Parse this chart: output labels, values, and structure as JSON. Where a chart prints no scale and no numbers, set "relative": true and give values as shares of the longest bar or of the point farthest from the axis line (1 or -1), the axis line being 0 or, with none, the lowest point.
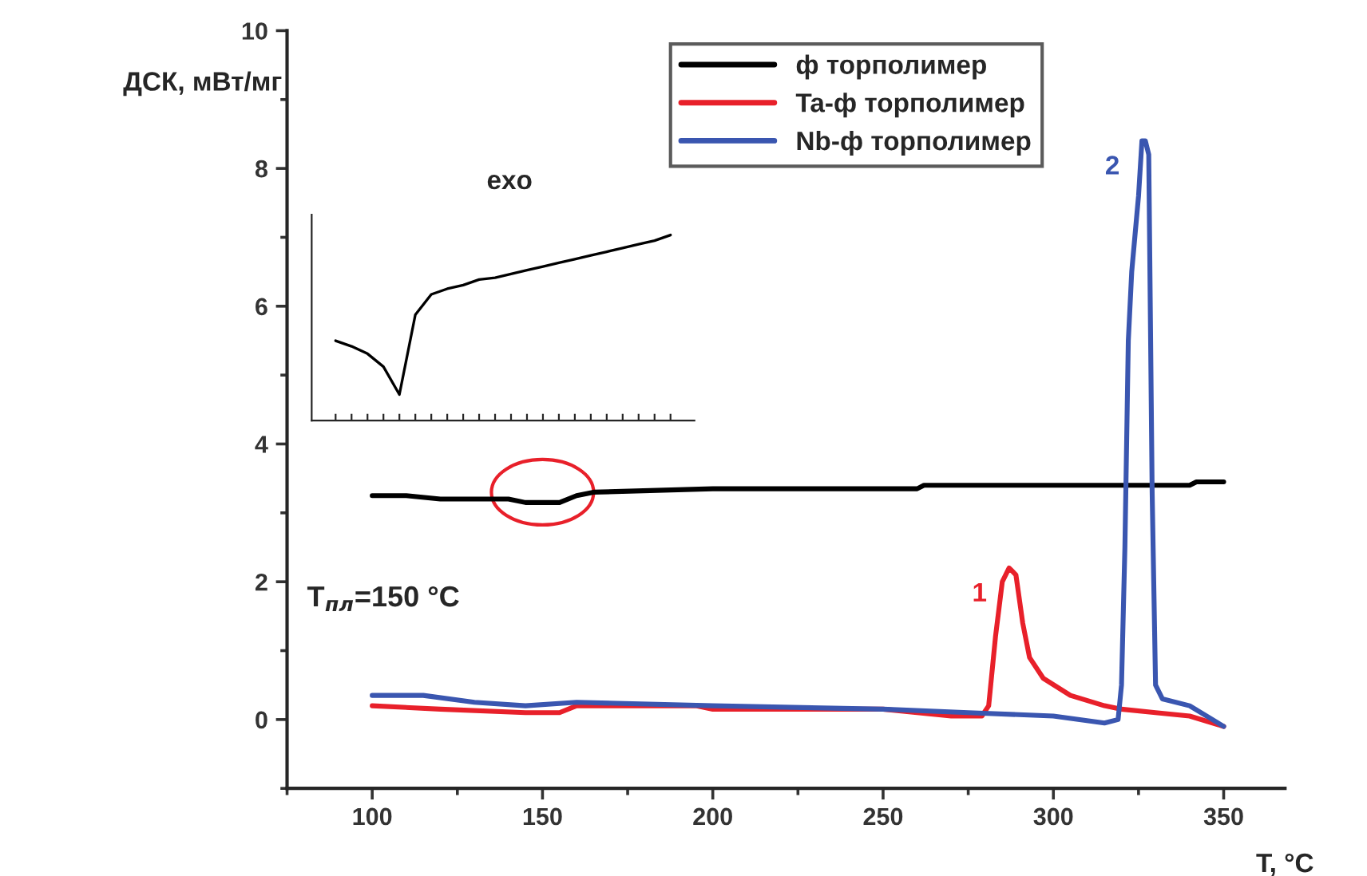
{
  "chart_data": [
    {
      "type": "line",
      "xlabel": "T, °C",
      "ylabel": "ДСК, мВт/мг",
      "xlim": [
        75,
        368
      ],
      "ylim": [
        -1,
        10
      ],
      "xticks": [
        100,
        150,
        200,
        250,
        300,
        350
      ],
      "yticks": [
        0,
        2,
        4,
        6,
        8,
        10
      ],
      "grid": false,
      "legend": "top right",
      "series": [
        {
          "name": "ф торполимер",
          "color": "#000000",
          "x": [
            100,
            110,
            120,
            140,
            145,
            150,
            155,
            160,
            165,
            200,
            260,
            262,
            340,
            342,
            350
          ],
          "values": [
            3.25,
            3.25,
            3.2,
            3.2,
            3.15,
            3.15,
            3.15,
            3.25,
            3.3,
            3.35,
            3.35,
            3.4,
            3.4,
            3.45,
            3.45
          ]
        },
        {
          "name": "Ta-ф торполимер",
          "color": "#e8202a",
          "x": [
            100,
            120,
            145,
            155,
            160,
            195,
            200,
            250,
            270,
            279,
            281,
            283,
            285,
            287,
            289,
            291,
            293,
            297,
            305,
            315,
            320,
            330,
            340,
            350
          ],
          "values": [
            0.2,
            0.15,
            0.1,
            0.1,
            0.2,
            0.2,
            0.15,
            0.15,
            0.05,
            0.05,
            0.2,
            1.2,
            2.0,
            2.2,
            2.1,
            1.4,
            0.9,
            0.6,
            0.35,
            0.2,
            0.15,
            0.1,
            0.05,
            -0.1
          ]
        },
        {
          "name": "Nb-ф торполимер",
          "color": "#3a56b0",
          "x": [
            100,
            115,
            130,
            145,
            160,
            200,
            250,
            275,
            300,
            315,
            319,
            320,
            321,
            322,
            323,
            325,
            326,
            327,
            328,
            329,
            330,
            332,
            340,
            350
          ],
          "values": [
            0.35,
            0.35,
            0.25,
            0.2,
            0.25,
            0.2,
            0.15,
            0.1,
            0.05,
            -0.05,
            0.0,
            0.5,
            2.5,
            5.5,
            6.5,
            7.6,
            8.4,
            8.4,
            8.2,
            3.3,
            0.5,
            0.3,
            0.2,
            -0.1
          ]
        }
      ],
      "annotations": [
        "exo",
        "T$_{пл}$=150 °C",
        {
          "text": "1",
          "x": 287,
          "y": 2.2
        },
        {
          "text": "2",
          "x": 326,
          "y": 8.4
        }
      ]
    },
    {
      "type": "line",
      "relative": true,
      "categories": [
        null,
        null,
        null,
        null,
        null,
        null,
        null,
        null,
        null,
        null,
        null,
        null,
        null,
        null,
        null,
        null,
        null,
        null,
        null,
        null,
        null,
        null
      ],
      "series": [
        {
          "color": "#000000",
          "values": [
            0.43,
            0.4,
            0.36,
            0.29,
            0.14,
            0.57,
            0.68,
            0.71,
            0.73,
            0.76,
            0.77,
            0.79,
            0.81,
            0.83,
            0.85,
            0.87,
            0.89,
            0.91,
            0.93,
            0.95,
            0.97,
            1.0
          ]
        }
      ]
    }
  ]
}
